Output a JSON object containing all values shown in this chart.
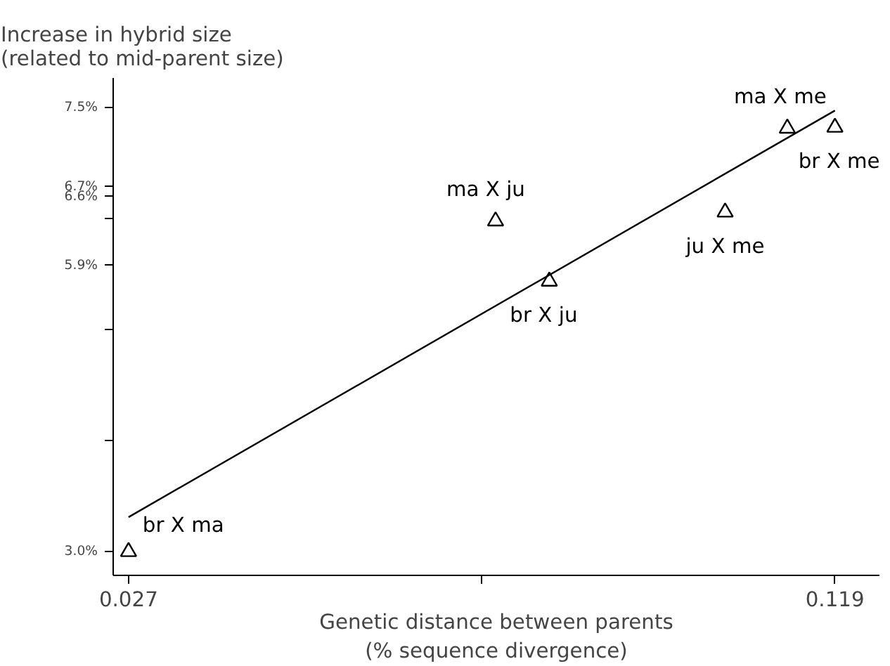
{
  "chart_data": {
    "type": "scatter",
    "ylabel": "Increase in hybrid size\n(related to mid-parent size)",
    "xlabel": "Genetic distance between parents\n(% sequence divergence)",
    "xlim": [
      0.025,
      0.1248
    ],
    "ylim": [
      2.76,
      7.8
    ],
    "xticks": [
      0.027,
      {
        "value": 0.073,
        "label": null
      },
      0.119
    ],
    "yticks": [
      {
        "value": 3.0,
        "label": "3.0%"
      },
      {
        "value": 4.125,
        "label": null
      },
      {
        "value": 5.25,
        "label": null
      },
      {
        "value": 5.9,
        "label": "5.9%"
      },
      {
        "value": 6.375,
        "label": null
      },
      {
        "value": 6.6,
        "label": "6.6%"
      },
      {
        "value": 6.7,
        "label": "6.7%"
      },
      {
        "value": 7.5,
        "label": "7.5%"
      }
    ],
    "grid": false,
    "series": [
      {
        "type": "scatter",
        "marker": "triangle",
        "color": "#000000",
        "x": [
          0.027,
          0.0748,
          0.0818,
          0.1047,
          0.1128,
          0.119
        ],
        "values": [
          3.0,
          6.35,
          5.74,
          6.44,
          7.29,
          7.3
        ]
      },
      {
        "type": "line",
        "color": "#000000",
        "x": [
          0.027,
          0.119
        ],
        "values": [
          3.35,
          7.47
        ]
      }
    ],
    "annotations": [
      {
        "text": "br X ma",
        "x": 0.027,
        "y": 3.0
      },
      {
        "text": "ma X ju",
        "x": 0.0748,
        "y": 6.35
      },
      {
        "text": "br X ju",
        "x": 0.0818,
        "y": 5.74
      },
      {
        "text": "ju X me",
        "x": 0.1047,
        "y": 6.44
      },
      {
        "text": "ma X me",
        "x": 0.1128,
        "y": 7.29
      },
      {
        "text": "br X me",
        "x": 0.119,
        "y": 7.3
      }
    ]
  }
}
